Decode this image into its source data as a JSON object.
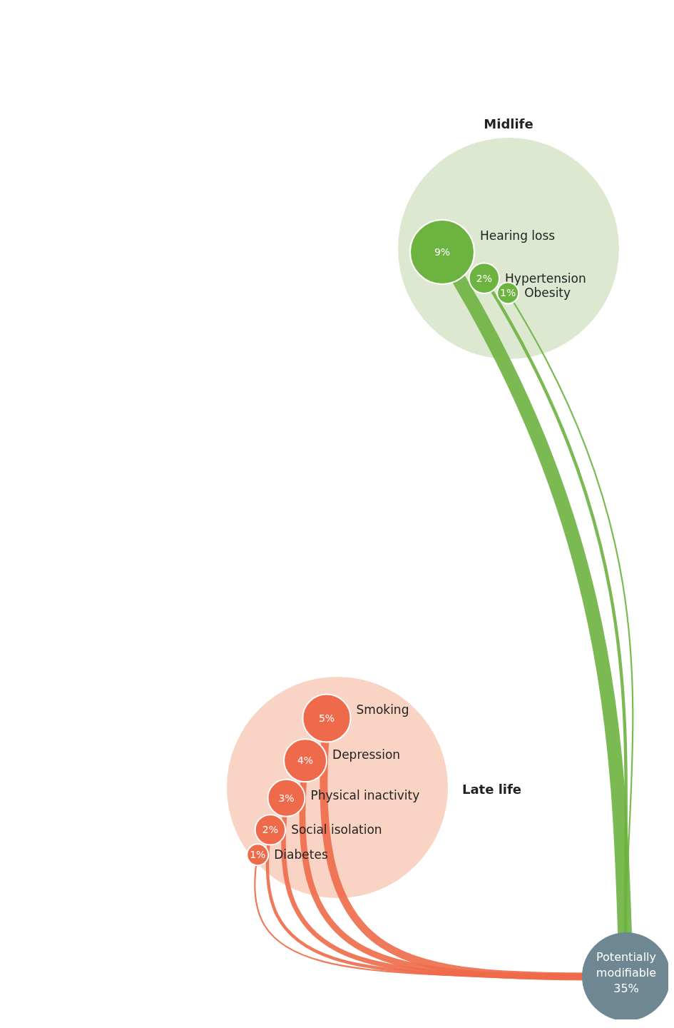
{
  "chart_data": [
    {
      "type": "other",
      "title": "Midlife",
      "categories": [
        "Hearing loss",
        "Hypertension",
        "Obesity"
      ],
      "values": [
        9,
        2,
        1
      ],
      "value_labels": [
        "9%",
        "2%",
        "1%"
      ],
      "colors": [
        "#6db33f",
        "#6db33f",
        "#6db33f"
      ]
    },
    {
      "type": "other",
      "title": "Late life",
      "categories": [
        "Smoking",
        "Depression",
        "Physical inactivity",
        "Social isolation",
        "Diabetes"
      ],
      "values": [
        5,
        4,
        3,
        2,
        1
      ],
      "value_labels": [
        "5%",
        "4%",
        "3%",
        "2%",
        "1%"
      ],
      "colors": [
        "#ee6a4a",
        "#ee6a4a",
        "#ee6a4a",
        "#ee6a4a",
        "#ee6a4a"
      ],
      "annotations": [
        "Potentially modifiable 35%"
      ]
    }
  ]
}
